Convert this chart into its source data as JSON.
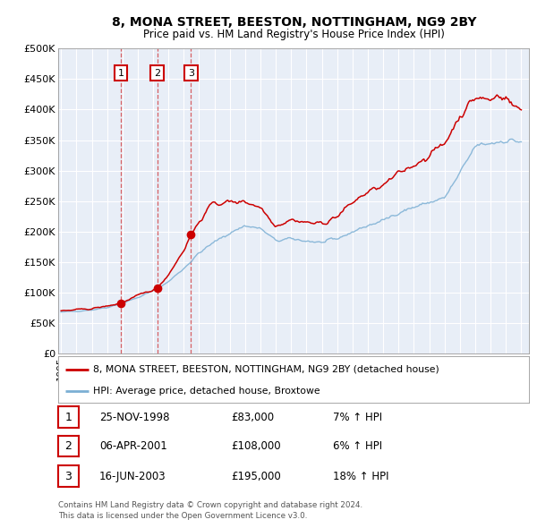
{
  "title": "8, MONA STREET, BEESTON, NOTTINGHAM, NG9 2BY",
  "subtitle": "Price paid vs. HM Land Registry's House Price Index (HPI)",
  "sales": [
    {
      "label": "1",
      "date": 1998.9,
      "price": 83000,
      "date_str": "25-NOV-1998",
      "pct": "7%",
      "dir": "↑"
    },
    {
      "label": "2",
      "date": 2001.27,
      "price": 108000,
      "date_str": "06-APR-2001",
      "pct": "6%",
      "dir": "↑"
    },
    {
      "label": "3",
      "date": 2003.46,
      "price": 195000,
      "date_str": "16-JUN-2003",
      "pct": "18%",
      "dir": "↑"
    }
  ],
  "legend_label_red": "8, MONA STREET, BEESTON, NOTTINGHAM, NG9 2BY (detached house)",
  "legend_label_blue": "HPI: Average price, detached house, Broxtowe",
  "footer1": "Contains HM Land Registry data © Crown copyright and database right 2024.",
  "footer2": "This data is licensed under the Open Government Licence v3.0.",
  "table_rows": [
    [
      "1",
      "25-NOV-1998",
      "£83,000",
      "7% ↑ HPI"
    ],
    [
      "2",
      "06-APR-2001",
      "£108,000",
      "6% ↑ HPI"
    ],
    [
      "3",
      "16-JUN-2003",
      "£195,000",
      "18% ↑ HPI"
    ]
  ],
  "background_color": "#e8eef7",
  "red_color": "#cc0000",
  "blue_color": "#7bafd4",
  "ylim": [
    0,
    500000
  ],
  "xlim_start": 1994.8,
  "xlim_end": 2025.5,
  "hpi_keypoints_x": [
    1995.0,
    1996.0,
    1997.0,
    1998.0,
    1999.0,
    2000.0,
    2001.0,
    2002.0,
    2003.0,
    2004.0,
    2005.0,
    2006.0,
    2007.0,
    2008.0,
    2009.0,
    2010.0,
    2011.0,
    2012.0,
    2013.0,
    2014.0,
    2015.0,
    2016.0,
    2017.0,
    2018.0,
    2019.0,
    2020.0,
    2021.0,
    2022.0,
    2023.0,
    2024.0,
    2025.0
  ],
  "hpi_keypoints_y": [
    68000,
    70000,
    72000,
    76000,
    83000,
    92000,
    103000,
    118000,
    140000,
    165000,
    183000,
    198000,
    210000,
    205000,
    185000,
    188000,
    185000,
    182000,
    188000,
    200000,
    210000,
    218000,
    232000,
    240000,
    248000,
    255000,
    295000,
    340000,
    345000,
    350000,
    348000
  ],
  "red_keypoints_x": [
    1995.0,
    1996.0,
    1997.0,
    1998.0,
    1998.9,
    2000.0,
    2001.0,
    2001.27,
    2002.0,
    2003.0,
    2003.46,
    2004.5,
    2005.0,
    2006.0,
    2007.0,
    2008.0,
    2009.0,
    2010.0,
    2011.0,
    2012.0,
    2013.0,
    2014.0,
    2015.0,
    2016.0,
    2017.0,
    2018.0,
    2019.0,
    2020.0,
    2021.0,
    2022.0,
    2023.0,
    2023.5,
    2024.0,
    2024.5,
    2025.0
  ],
  "red_keypoints_y": [
    70000,
    72000,
    74000,
    78000,
    83000,
    95000,
    105000,
    108000,
    130000,
    170000,
    195000,
    235000,
    247000,
    248000,
    250000,
    240000,
    210000,
    220000,
    215000,
    213000,
    225000,
    248000,
    265000,
    275000,
    295000,
    310000,
    325000,
    345000,
    390000,
    420000,
    415000,
    425000,
    420000,
    405000,
    400000
  ]
}
